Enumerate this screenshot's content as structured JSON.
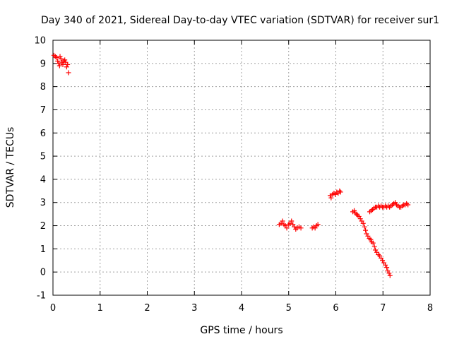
{
  "chart_data": {
    "type": "scatter",
    "title": "Day 340 of 2021, Sidereal Day-to-day VTEC variation (SDTVAR) for receiver sur1",
    "xlabel": "GPS time / hours",
    "ylabel": "SDTVAR / TECUs",
    "xlim": [
      0,
      8
    ],
    "ylim": [
      -1,
      10
    ],
    "x_ticks": [
      "0",
      "1",
      "2",
      "3",
      "4",
      "5",
      "6",
      "7",
      "8"
    ],
    "y_ticks": [
      "-1",
      "0",
      "1",
      "2",
      "3",
      "4",
      "5",
      "6",
      "7",
      "8",
      "9",
      "10"
    ],
    "grid": true,
    "marker": "+",
    "color": "#ff0000",
    "series": [
      {
        "points": [
          [
            0.02,
            9.35
          ],
          [
            0.05,
            9.3
          ],
          [
            0.08,
            9.25
          ],
          [
            0.1,
            9.1
          ],
          [
            0.12,
            9.0
          ],
          [
            0.14,
            8.9
          ],
          [
            0.15,
            9.3
          ],
          [
            0.17,
            9.2
          ],
          [
            0.19,
            9.05
          ],
          [
            0.21,
            8.95
          ],
          [
            0.23,
            9.1
          ],
          [
            0.25,
            9.15
          ],
          [
            0.27,
            9.05
          ],
          [
            0.29,
            8.85
          ],
          [
            0.31,
            8.95
          ],
          [
            0.33,
            8.6
          ],
          [
            4.8,
            2.05
          ],
          [
            4.84,
            2.1
          ],
          [
            4.87,
            2.2
          ],
          [
            4.9,
            2.05
          ],
          [
            4.93,
            2.0
          ],
          [
            4.96,
            1.9
          ],
          [
            5.0,
            2.05
          ],
          [
            5.03,
            2.1
          ],
          [
            5.06,
            2.2
          ],
          [
            5.09,
            2.05
          ],
          [
            5.12,
            1.95
          ],
          [
            5.15,
            1.85
          ],
          [
            5.18,
            1.9
          ],
          [
            5.22,
            1.95
          ],
          [
            5.26,
            1.9
          ],
          [
            5.5,
            1.9
          ],
          [
            5.53,
            1.95
          ],
          [
            5.56,
            1.9
          ],
          [
            5.59,
            2.0
          ],
          [
            5.62,
            2.05
          ],
          [
            5.88,
            3.3
          ],
          [
            5.9,
            3.2
          ],
          [
            5.93,
            3.35
          ],
          [
            5.96,
            3.4
          ],
          [
            5.99,
            3.35
          ],
          [
            6.02,
            3.45
          ],
          [
            6.05,
            3.4
          ],
          [
            6.08,
            3.5
          ],
          [
            6.1,
            3.45
          ],
          [
            6.36,
            2.6
          ],
          [
            6.39,
            2.65
          ],
          [
            6.41,
            2.55
          ],
          [
            6.44,
            2.5
          ],
          [
            6.46,
            2.45
          ],
          [
            6.49,
            2.4
          ],
          [
            6.52,
            2.3
          ],
          [
            6.55,
            2.2
          ],
          [
            6.58,
            2.1
          ],
          [
            6.61,
            1.95
          ],
          [
            6.63,
            1.8
          ],
          [
            6.65,
            1.65
          ],
          [
            6.68,
            1.55
          ],
          [
            6.71,
            1.45
          ],
          [
            6.74,
            1.4
          ],
          [
            6.76,
            1.3
          ],
          [
            6.79,
            1.25
          ],
          [
            6.82,
            1.1
          ],
          [
            6.84,
            0.95
          ],
          [
            6.87,
            0.85
          ],
          [
            6.9,
            0.75
          ],
          [
            6.93,
            0.7
          ],
          [
            6.96,
            0.6
          ],
          [
            6.99,
            0.5
          ],
          [
            7.02,
            0.4
          ],
          [
            7.05,
            0.3
          ],
          [
            7.08,
            0.2
          ],
          [
            7.1,
            0.05
          ],
          [
            7.13,
            -0.05
          ],
          [
            7.15,
            -0.15
          ],
          [
            6.72,
            2.6
          ],
          [
            6.75,
            2.65
          ],
          [
            6.78,
            2.7
          ],
          [
            6.81,
            2.75
          ],
          [
            6.84,
            2.8
          ],
          [
            6.87,
            2.8
          ],
          [
            6.9,
            2.85
          ],
          [
            6.93,
            2.8
          ],
          [
            6.96,
            2.85
          ],
          [
            6.99,
            2.8
          ],
          [
            7.02,
            2.8
          ],
          [
            7.05,
            2.85
          ],
          [
            7.08,
            2.8
          ],
          [
            7.11,
            2.85
          ],
          [
            7.14,
            2.8
          ],
          [
            7.17,
            2.85
          ],
          [
            7.2,
            2.9
          ],
          [
            7.23,
            2.95
          ],
          [
            7.26,
            3.0
          ],
          [
            7.29,
            2.9
          ],
          [
            7.32,
            2.85
          ],
          [
            7.35,
            2.8
          ],
          [
            7.38,
            2.8
          ],
          [
            7.41,
            2.85
          ],
          [
            7.44,
            2.9
          ],
          [
            7.47,
            2.9
          ],
          [
            7.5,
            2.95
          ],
          [
            7.53,
            2.9
          ]
        ]
      }
    ]
  }
}
